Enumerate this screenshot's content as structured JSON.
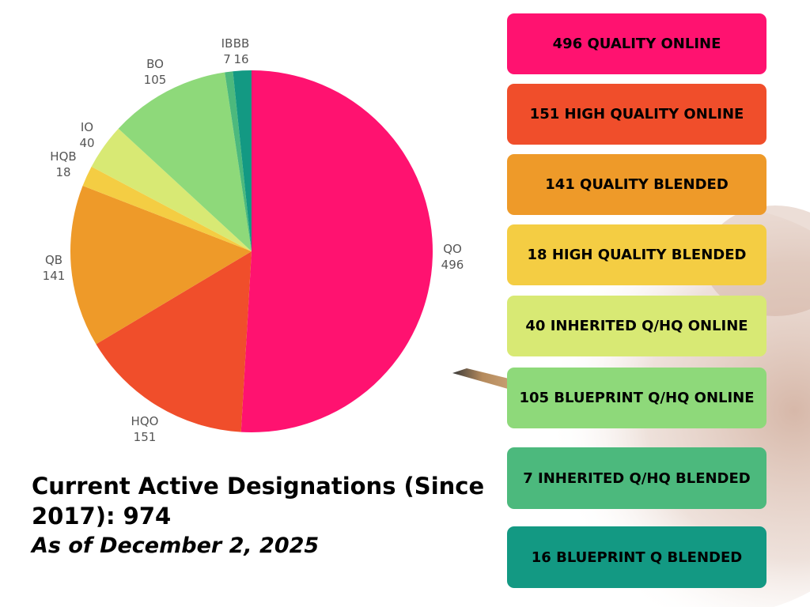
{
  "title": {
    "heading": "Current Active Designations (Since 2017): 974",
    "subtitle": "As of December 2, 2025"
  },
  "legend": {
    "items": [
      {
        "label": "496 QUALITY ONLINE",
        "color": "#ff1270"
      },
      {
        "label": "151 HIGH QUALITY ONLINE",
        "color": "#f04e2b"
      },
      {
        "label": "141 QUALITY BLENDED",
        "color": "#ee9a29"
      },
      {
        "label": "18 HIGH QUALITY BLENDED",
        "color": "#f4cd43"
      },
      {
        "label": "40 INHERITED Q/HQ ONLINE",
        "color": "#d8e974"
      },
      {
        "label": "105 BLUEPRINT Q/HQ ONLINE",
        "color": "#8ed97a"
      },
      {
        "label": "7 INHERITED Q/HQ BLENDED",
        "color": "#4cb97d"
      },
      {
        "label": "16 BLUEPRINT Q BLENDED",
        "color": "#139983"
      }
    ]
  },
  "chart_data": {
    "type": "pie",
    "categories": [
      "QO",
      "HQO",
      "QB",
      "HQB",
      "IO",
      "BO",
      "IB",
      "BB"
    ],
    "values": [
      496,
      151,
      141,
      18,
      40,
      105,
      7,
      16
    ],
    "colors": [
      "#ff1270",
      "#f04e2b",
      "#ee9a29",
      "#f4cd43",
      "#d8e974",
      "#8ed97a",
      "#4cb97d",
      "#139983"
    ],
    "data_labels": [
      "496",
      "151",
      "141",
      "18",
      "40",
      "105",
      "7",
      "16"
    ],
    "total": 974
  }
}
